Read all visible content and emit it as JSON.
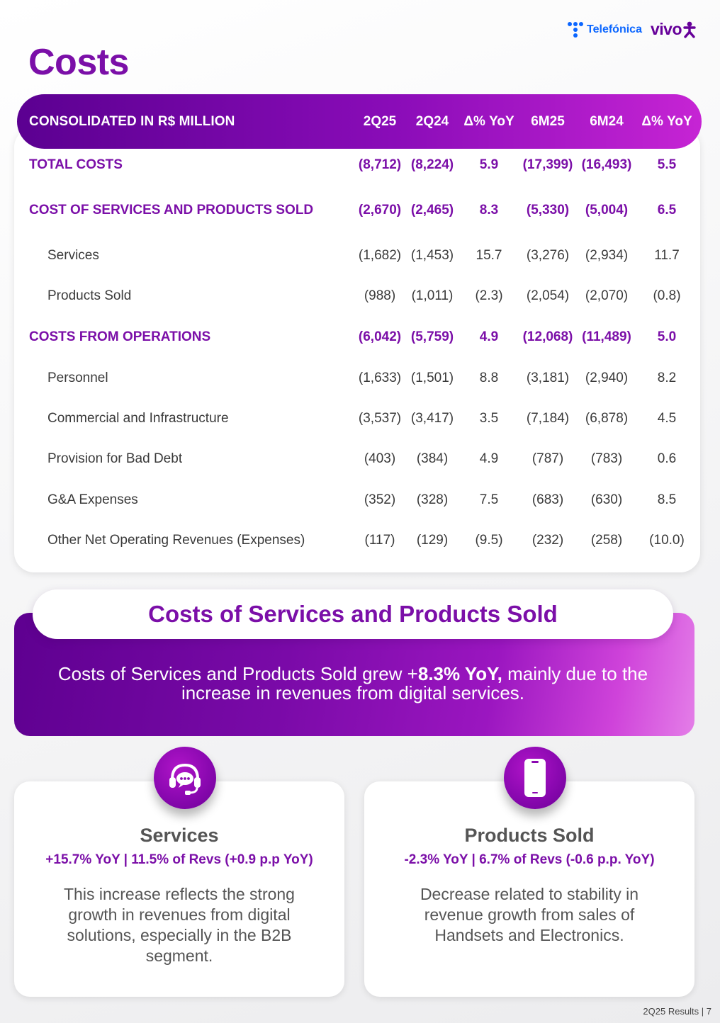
{
  "header": {
    "telefonica_logo": "Telefónica",
    "vivo_logo": "vivo",
    "page_title": "Costs"
  },
  "table": {
    "header": {
      "label": "CONSOLIDATED IN R$ MILLION",
      "columns": [
        "2Q25",
        "2Q24",
        "Δ% YoY",
        "6M25",
        "6M24",
        "Δ% YoY"
      ]
    },
    "rows": [
      {
        "label": "TOTAL COSTS",
        "type": "main",
        "values": [
          "(8,712)",
          "(8,224)",
          "5.9",
          "(17,399)",
          "(16,493)",
          "5.5"
        ]
      },
      {
        "label": "COST OF SERVICES AND PRODUCTS SOLD",
        "type": "main",
        "values": [
          "(2,670)",
          "(2,465)",
          "8.3",
          "(5,330)",
          "(5,004)",
          "6.5"
        ]
      },
      {
        "label": "Services",
        "type": "sub",
        "values": [
          "(1,682)",
          "(1,453)",
          "15.7",
          "(3,276)",
          "(2,934)",
          "11.7"
        ]
      },
      {
        "label": "Products Sold",
        "type": "sub",
        "values": [
          "(988)",
          "(1,011)",
          "(2.3)",
          "(2,054)",
          "(2,070)",
          "(0.8)"
        ]
      },
      {
        "label": "COSTS FROM OPERATIONS",
        "type": "main",
        "values": [
          "(6,042)",
          "(5,759)",
          "4.9",
          "(12,068)",
          "(11,489)",
          "5.0"
        ]
      },
      {
        "label": "Personnel",
        "type": "sub",
        "values": [
          "(1,633)",
          "(1,501)",
          "8.8",
          "(3,181)",
          "(2,940)",
          "8.2"
        ]
      },
      {
        "label": "Commercial and Infrastructure",
        "type": "sub",
        "values": [
          "(3,537)",
          "(3,417)",
          "3.5",
          "(7,184)",
          "(6,878)",
          "4.5"
        ]
      },
      {
        "label": "Provision for Bad Debt",
        "type": "sub",
        "values": [
          "(403)",
          "(384)",
          "4.9",
          "(787)",
          "(783)",
          "0.6"
        ]
      },
      {
        "label": "G&A Expenses",
        "type": "sub",
        "values": [
          "(352)",
          "(328)",
          "7.5",
          "(683)",
          "(630)",
          "8.5"
        ]
      },
      {
        "label": "Other Net Operating Revenues (Expenses)",
        "type": "sub",
        "values": [
          "(117)",
          "(129)",
          "(9.5)",
          "(232)",
          "(258)",
          "(10.0)"
        ]
      }
    ]
  },
  "banner": {
    "title": "Costs of Services and Products Sold",
    "text_before": "Costs of Services and Products Sold grew +",
    "text_bold": "8.3% YoY,",
    "text_after": " mainly due to the increase in revenues from digital services."
  },
  "cards": [
    {
      "icon": "headset-chat-icon",
      "title": "Services",
      "stat": "+15.7% YoY | 11.5% of Revs (+0.9 p.p YoY)",
      "text": "This increase reflects the strong growth in revenues from digital solutions, especially in the B2B segment."
    },
    {
      "icon": "smartphone-icon",
      "title": "Products Sold",
      "stat": "-2.3% YoY | 6.7% of Revs (-0.6 p.p. YoY)",
      "text": "Decrease related to stability in revenue growth from sales of Handsets and Electronics."
    }
  ],
  "footer": {
    "page_label": "2Q25 Results | 7"
  },
  "colors": {
    "brand_purple": "#7b0fa8",
    "telefonica_blue": "#0b66ff",
    "vivo_purple": "#660099"
  }
}
